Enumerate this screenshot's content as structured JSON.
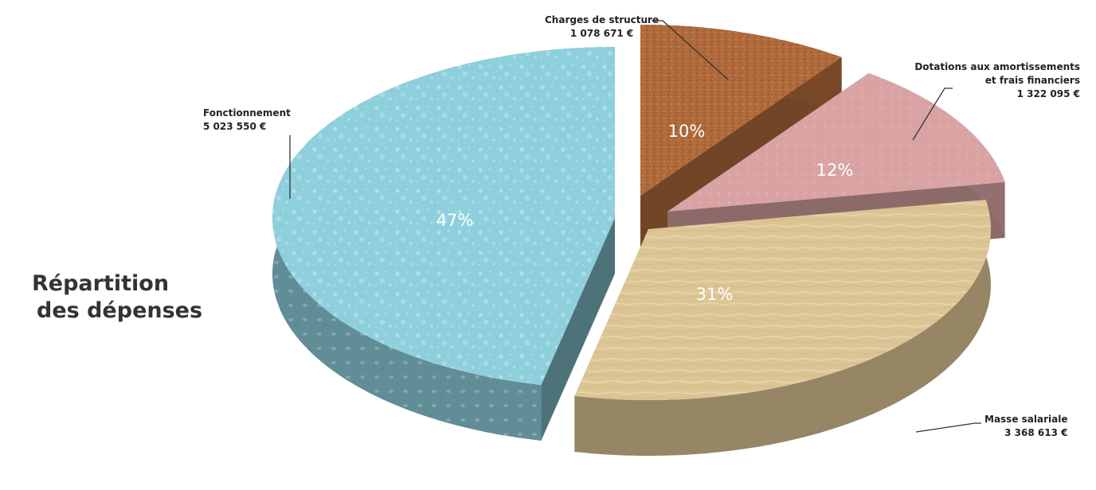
{
  "chart_data": {
    "type": "pie",
    "title": "Répartition des dépenses",
    "title_lines": [
      "Répartition",
      "des dépenses"
    ],
    "slices": [
      {
        "name": "Charges de structure",
        "value": 1078671,
        "value_label": "1 078 671 €",
        "percent_label": "10%",
        "label_lines": [
          "Charges de structure"
        ],
        "color": "#b06a3c"
      },
      {
        "name": "Dotations aux amortissements et frais financiers",
        "value": 1322095,
        "value_label": "1 322 095 €",
        "percent_label": "12%",
        "label_lines": [
          "Dotations aux amortissements",
          "et frais financiers"
        ],
        "color": "#d9a3a3"
      },
      {
        "name": "Masse salariale",
        "value": 3368613,
        "value_label": "3 368 613 €",
        "percent_label": "31%",
        "label_lines": [
          "Masse salariale"
        ],
        "color": "#dcc594"
      },
      {
        "name": "Fonctionnement",
        "value": 5023550,
        "value_label": "5 023 550 €",
        "percent_label": "47%",
        "label_lines": [
          "Fonctionnement"
        ],
        "color": "#8ecfdc"
      }
    ],
    "legend": "none",
    "style": "3d-exploded"
  }
}
